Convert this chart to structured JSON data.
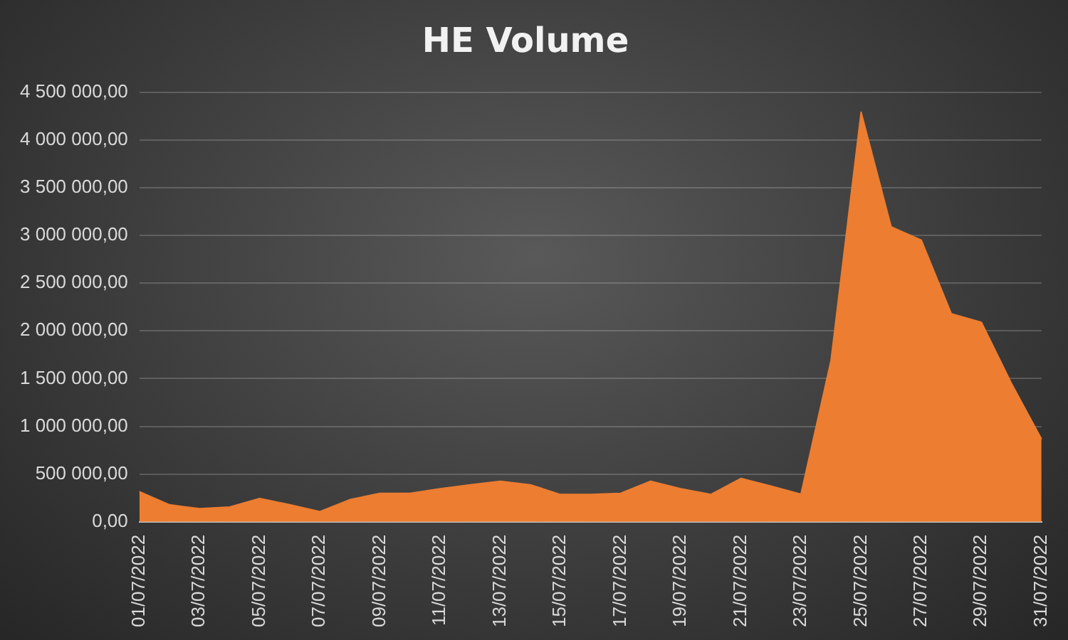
{
  "chart_data": {
    "type": "area",
    "title": "HE Volume",
    "categories": [
      "01/07/2022",
      null,
      "03/07/2022",
      null,
      "05/07/2022",
      null,
      "07/07/2022",
      null,
      "09/07/2022",
      null,
      "11/07/2022",
      null,
      "13/07/2022",
      null,
      "15/07/2022",
      null,
      "17/07/2022",
      null,
      "19/07/2022",
      null,
      "21/07/2022",
      null,
      "23/07/2022",
      null,
      "25/07/2022",
      null,
      "27/07/2022",
      null,
      "29/07/2022",
      null,
      "31/07/2022"
    ],
    "series": [
      {
        "color": "#ed7d31",
        "values": [
          317000,
          179000,
          138000,
          156000,
          245000,
          179000,
          108000,
          233000,
          299000,
          299000,
          348000,
          389000,
          425000,
          389000,
          287000,
          287000,
          299000,
          425000,
          348000,
          287000,
          455000,
          376000,
          290000,
          1690000,
          4290000,
          3090000,
          2950000,
          2180000,
          2090000,
          1450000,
          867000
        ]
      }
    ],
    "ylim": [
      0,
      4500000
    ],
    "yticks": [
      {
        "value": 0,
        "label": "0,00"
      },
      {
        "value": 500000,
        "label": "500 000,00"
      },
      {
        "value": 1000000,
        "label": "1 000 000,00"
      },
      {
        "value": 1500000,
        "label": "1 500 000,00"
      },
      {
        "value": 2000000,
        "label": "2 000 000,00"
      },
      {
        "value": 2500000,
        "label": "2 500 000,00"
      },
      {
        "value": 3000000,
        "label": "3 000 000,00"
      },
      {
        "value": 3500000,
        "label": "3 500 000,00"
      },
      {
        "value": 4000000,
        "label": "4 000 000,00"
      },
      {
        "value": 4500000,
        "label": "4 500 000,00"
      }
    ],
    "grid": "y",
    "legend": false
  }
}
